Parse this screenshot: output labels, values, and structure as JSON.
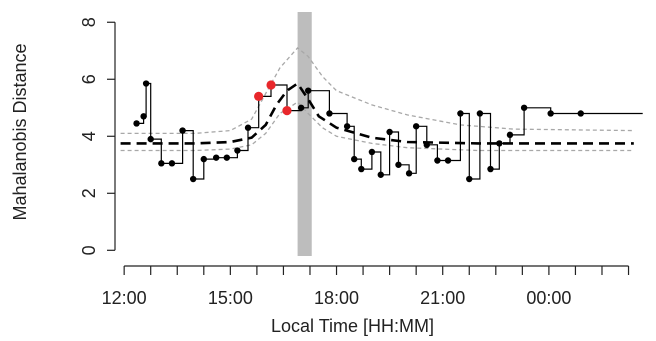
{
  "chart_data": {
    "type": "line",
    "xlabel": "Local Time [HH:MM]",
    "ylabel": "Mahalanobis Distance",
    "x_unit": "hours",
    "xlim": [
      11.6,
      26.8
    ],
    "ylim": [
      -0.2,
      8.5
    ],
    "x_ticks": [
      {
        "value": 12,
        "label": "12:00"
      },
      {
        "value": 15,
        "label": "15:00"
      },
      {
        "value": 18,
        "label": "18:00"
      },
      {
        "value": 21,
        "label": "21:00"
      },
      {
        "value": 24,
        "label": "00:00"
      }
    ],
    "x_minor_ticks": [
      12.0,
      12.75,
      13.5,
      14.25,
      15.0,
      15.75,
      16.5,
      17.25,
      18.0,
      18.75,
      19.5,
      20.25,
      21.0,
      21.75,
      22.5,
      23.25,
      24.0,
      24.75,
      25.5,
      26.25
    ],
    "y_ticks": [
      {
        "value": 0,
        "label": "0"
      },
      {
        "value": 2,
        "label": "2"
      },
      {
        "value": 4,
        "label": "4"
      },
      {
        "value": 6,
        "label": "6"
      },
      {
        "value": 8,
        "label": "8"
      }
    ],
    "highlight_band": {
      "x_start": 16.9,
      "x_end": 17.3,
      "color": "#bdbdbd"
    },
    "observed": {
      "style": "step-with-points",
      "color": "#000000",
      "points": [
        {
          "x": 12.35,
          "y": 4.45
        },
        {
          "x": 12.55,
          "y": 4.7
        },
        {
          "x": 12.62,
          "y": 5.85
        },
        {
          "x": 12.75,
          "y": 3.9
        },
        {
          "x": 13.05,
          "y": 3.05
        },
        {
          "x": 13.35,
          "y": 3.05
        },
        {
          "x": 13.65,
          "y": 4.2
        },
        {
          "x": 13.95,
          "y": 2.5
        },
        {
          "x": 14.25,
          "y": 3.2
        },
        {
          "x": 14.6,
          "y": 3.25
        },
        {
          "x": 14.9,
          "y": 3.25
        },
        {
          "x": 15.2,
          "y": 3.5
        },
        {
          "x": 15.5,
          "y": 4.3
        },
        {
          "x": 15.8,
          "y": 5.4
        },
        {
          "x": 16.15,
          "y": 5.8
        },
        {
          "x": 16.6,
          "y": 4.9
        },
        {
          "x": 17.0,
          "y": 5.0
        },
        {
          "x": 17.2,
          "y": 5.6
        },
        {
          "x": 17.8,
          "y": 4.8
        },
        {
          "x": 18.3,
          "y": 4.35
        },
        {
          "x": 18.5,
          "y": 3.2
        },
        {
          "x": 18.7,
          "y": 2.85
        },
        {
          "x": 19.0,
          "y": 3.45
        },
        {
          "x": 19.25,
          "y": 2.65
        },
        {
          "x": 19.5,
          "y": 4.15
        },
        {
          "x": 19.75,
          "y": 3.0
        },
        {
          "x": 20.05,
          "y": 2.7
        },
        {
          "x": 20.25,
          "y": 4.35
        },
        {
          "x": 20.55,
          "y": 3.7
        },
        {
          "x": 20.85,
          "y": 3.15
        },
        {
          "x": 21.15,
          "y": 3.15
        },
        {
          "x": 21.5,
          "y": 4.8
        },
        {
          "x": 21.75,
          "y": 2.5
        },
        {
          "x": 22.05,
          "y": 4.8
        },
        {
          "x": 22.35,
          "y": 2.85
        },
        {
          "x": 22.6,
          "y": 3.75
        },
        {
          "x": 22.9,
          "y": 4.05
        },
        {
          "x": 23.3,
          "y": 5.0
        },
        {
          "x": 24.05,
          "y": 4.8
        },
        {
          "x": 24.9,
          "y": 4.8
        }
      ]
    },
    "highlighted_points": {
      "color": "#e8272b",
      "points": [
        {
          "x": 15.8,
          "y": 5.4
        },
        {
          "x": 16.15,
          "y": 5.8
        },
        {
          "x": 16.6,
          "y": 4.9
        }
      ]
    },
    "model_mean": {
      "style": "dashed",
      "color": "#000000",
      "points": [
        {
          "x": 11.9,
          "y": 3.75
        },
        {
          "x": 12.5,
          "y": 3.75
        },
        {
          "x": 14.0,
          "y": 3.75
        },
        {
          "x": 15.0,
          "y": 3.8
        },
        {
          "x": 15.6,
          "y": 3.95
        },
        {
          "x": 16.0,
          "y": 4.4
        },
        {
          "x": 16.3,
          "y": 5.1
        },
        {
          "x": 16.6,
          "y": 5.6
        },
        {
          "x": 16.9,
          "y": 5.85
        },
        {
          "x": 17.2,
          "y": 5.3
        },
        {
          "x": 17.5,
          "y": 4.7
        },
        {
          "x": 18.0,
          "y": 4.3
        },
        {
          "x": 19.0,
          "y": 3.95
        },
        {
          "x": 20.0,
          "y": 3.8
        },
        {
          "x": 22.0,
          "y": 3.75
        },
        {
          "x": 26.4,
          "y": 3.75
        }
      ]
    },
    "upper_band": {
      "style": "dashed",
      "color": "#a8a8a8",
      "points": [
        {
          "x": 11.9,
          "y": 4.1
        },
        {
          "x": 14.0,
          "y": 4.1
        },
        {
          "x": 15.0,
          "y": 4.2
        },
        {
          "x": 15.6,
          "y": 4.6
        },
        {
          "x": 16.0,
          "y": 5.5
        },
        {
          "x": 16.4,
          "y": 6.4
        },
        {
          "x": 16.9,
          "y": 7.1
        },
        {
          "x": 17.2,
          "y": 6.8
        },
        {
          "x": 17.6,
          "y": 6.1
        },
        {
          "x": 18.0,
          "y": 5.6
        },
        {
          "x": 19.0,
          "y": 5.1
        },
        {
          "x": 20.0,
          "y": 4.75
        },
        {
          "x": 21.5,
          "y": 4.4
        },
        {
          "x": 23.0,
          "y": 4.25
        },
        {
          "x": 26.4,
          "y": 4.2
        }
      ]
    },
    "lower_band": {
      "style": "dashed",
      "color": "#a8a8a8",
      "points": [
        {
          "x": 11.9,
          "y": 3.5
        },
        {
          "x": 14.0,
          "y": 3.5
        },
        {
          "x": 15.0,
          "y": 3.55
        },
        {
          "x": 15.6,
          "y": 3.7
        },
        {
          "x": 16.0,
          "y": 4.1
        },
        {
          "x": 16.4,
          "y": 4.8
        },
        {
          "x": 16.9,
          "y": 5.2
        },
        {
          "x": 17.2,
          "y": 4.8
        },
        {
          "x": 17.6,
          "y": 4.3
        },
        {
          "x": 18.0,
          "y": 4.0
        },
        {
          "x": 19.0,
          "y": 3.75
        },
        {
          "x": 20.0,
          "y": 3.6
        },
        {
          "x": 22.0,
          "y": 3.5
        },
        {
          "x": 26.4,
          "y": 3.5
        }
      ]
    },
    "grid": false,
    "legend": "none"
  }
}
